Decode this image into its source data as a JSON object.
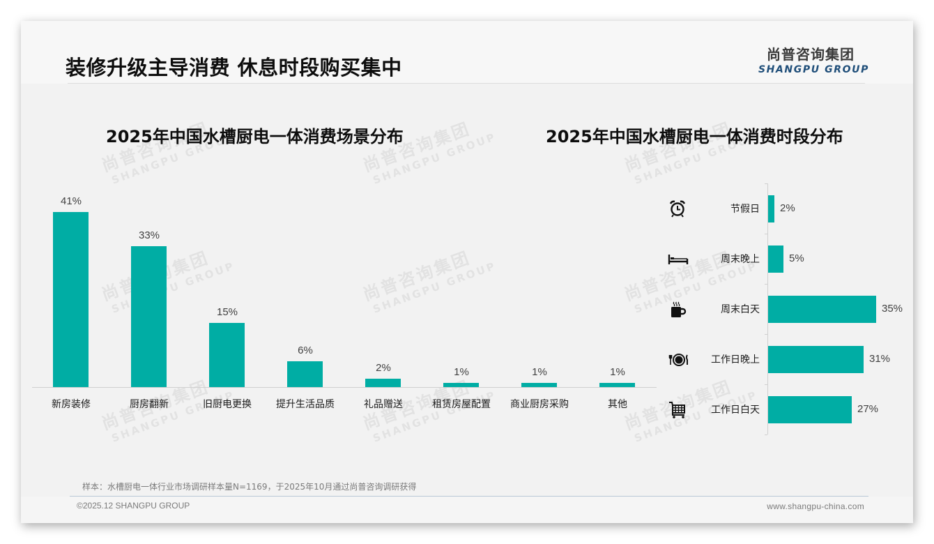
{
  "slide": {
    "title": "装修升级主导消费 休息时段购买集中",
    "logo": {
      "cn": "尚普咨询集团",
      "en": "SHANGPU GROUP"
    },
    "watermark": {
      "cn": "尚普咨询集团",
      "en": "SHANGPU GROUP"
    },
    "accent_color": "#00ADA4",
    "footnote": "样本：水槽厨电一体行业市场调研样本量N=1169，于2025年10月通过尚普咨询调研获得",
    "footer_left": "©2025.12 SHANGPU GROUP",
    "footer_right": "www.shangpu-china.com"
  },
  "charts": {
    "left": {
      "title": "2025年中国水槽厨电一体消费场景分布",
      "bars": [
        {
          "label": "新房装修",
          "value": 41,
          "display": "41%"
        },
        {
          "label": "厨房翻新",
          "value": 33,
          "display": "33%"
        },
        {
          "label": "旧厨电更换",
          "value": 15,
          "display": "15%"
        },
        {
          "label": "提升生活品质",
          "value": 6,
          "display": "6%"
        },
        {
          "label": "礼品赠送",
          "value": 2,
          "display": "2%"
        },
        {
          "label": "租赁房屋配置",
          "value": 1,
          "display": "1%"
        },
        {
          "label": "商业厨房采购",
          "value": 1,
          "display": "1%"
        },
        {
          "label": "其他",
          "value": 1,
          "display": "1%"
        }
      ]
    },
    "right": {
      "title": "2025年中国水槽厨电一体消费时段分布",
      "bars": [
        {
          "label": "节假日",
          "value": 2,
          "display": "2%",
          "icon": "alarm-clock-icon"
        },
        {
          "label": "周末晚上",
          "value": 5,
          "display": "5%",
          "icon": "bed-icon"
        },
        {
          "label": "周末白天",
          "value": 35,
          "display": "35%",
          "icon": "coffee-cup-icon"
        },
        {
          "label": "工作日晚上",
          "value": 31,
          "display": "31%",
          "icon": "dinner-plate-icon"
        },
        {
          "label": "工作日白天",
          "value": 27,
          "display": "27%",
          "icon": "shopping-cart-icon"
        }
      ]
    }
  },
  "chart_data": [
    {
      "type": "bar",
      "title": "2025年中国水槽厨电一体消费场景分布",
      "categories": [
        "新房装修",
        "厨房翻新",
        "旧厨电更换",
        "提升生活品质",
        "礼品赠送",
        "租赁房屋配置",
        "商业厨房采购",
        "其他"
      ],
      "values": [
        41,
        33,
        15,
        6,
        2,
        1,
        1,
        1
      ],
      "unit": "%",
      "xlabel": "",
      "ylabel": "",
      "orientation": "vertical",
      "data_labels": true,
      "grid": false,
      "legend": null
    },
    {
      "type": "bar",
      "title": "2025年中国水槽厨电一体消费时段分布",
      "categories": [
        "节假日",
        "周末晚上",
        "周末白天",
        "工作日晚上",
        "工作日白天"
      ],
      "values": [
        2,
        5,
        35,
        31,
        27
      ],
      "unit": "%",
      "xlabel": "",
      "ylabel": "",
      "orientation": "horizontal",
      "data_labels": true,
      "grid": false,
      "legend": null
    }
  ]
}
